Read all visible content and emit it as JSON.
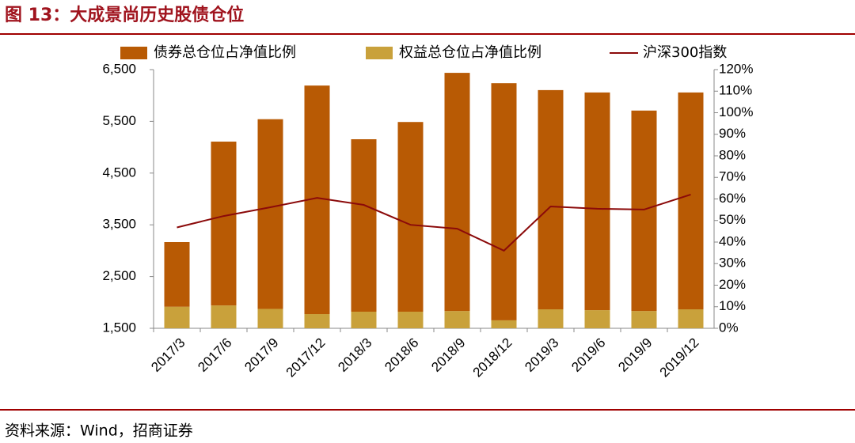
{
  "chart_data": {
    "type": "bar",
    "title": "图 13：大成景尚历史股债仓位",
    "source": "资料来源：Wind，招商证券",
    "stacked": true,
    "categories": [
      "2017/3",
      "2017/6",
      "2017/9",
      "2017/12",
      "2018/3",
      "2018/6",
      "2018/9",
      "2018/12",
      "2019/3",
      "2019/6",
      "2019/9",
      "2019/12"
    ],
    "series": [
      {
        "name": "债券总仓位占净值比例",
        "type": "bar",
        "axis": "y2",
        "color": "#b85a04",
        "values": [
          30,
          76,
          88,
          106,
          80,
          88,
          110.5,
          110,
          101.7,
          101,
          93,
          100.6
        ]
      },
      {
        "name": "权益总仓位占净值比例",
        "type": "bar",
        "axis": "y2",
        "color": "#c9a13b",
        "values": [
          10,
          10.6,
          9,
          6.6,
          7.7,
          7.7,
          8,
          3.7,
          8.8,
          8.4,
          8,
          8.8
        ]
      },
      {
        "name": "沪深300指数",
        "type": "line",
        "axis": "y",
        "color": "#8b0a0a",
        "values": [
          3450,
          3670,
          3840,
          4020,
          3885,
          3500,
          3425,
          3000,
          3855,
          3810,
          3795,
          4085
        ]
      }
    ],
    "ylim": [
      1500,
      6500
    ],
    "yticks": [
      {
        "value": 1500,
        "label": "1,500"
      },
      {
        "value": 2500,
        "label": "2,500"
      },
      {
        "value": 3500,
        "label": "3,500"
      },
      {
        "value": 4500,
        "label": "4,500"
      },
      {
        "value": 5500,
        "label": "5,500"
      },
      {
        "value": 6500,
        "label": "6,500"
      }
    ],
    "y2lim": [
      0,
      120
    ],
    "y2ticks": [
      {
        "value": 0,
        "label": "0%"
      },
      {
        "value": 10,
        "label": "10%"
      },
      {
        "value": 20,
        "label": "20%"
      },
      {
        "value": 30,
        "label": "30%"
      },
      {
        "value": 40,
        "label": "40%"
      },
      {
        "value": 50,
        "label": "50%"
      },
      {
        "value": 60,
        "label": "60%"
      },
      {
        "value": 70,
        "label": "70%"
      },
      {
        "value": 80,
        "label": "80%"
      },
      {
        "value": 90,
        "label": "90%"
      },
      {
        "value": 100,
        "label": "100%"
      },
      {
        "value": 110,
        "label": "110%"
      },
      {
        "value": 120,
        "label": "120%"
      }
    ],
    "legend": "top"
  }
}
